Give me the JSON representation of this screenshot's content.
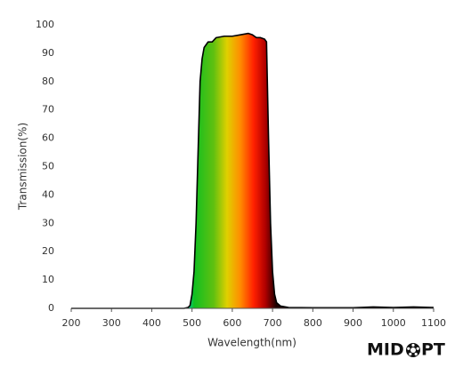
{
  "chart_data": {
    "type": "area",
    "x_label": "Wavelength(nm)",
    "y_label": "Transmission(%)",
    "x": [
      200,
      480,
      490,
      495,
      500,
      505,
      510,
      515,
      520,
      525,
      530,
      540,
      550,
      560,
      580,
      600,
      620,
      640,
      650,
      660,
      670,
      680,
      685,
      690,
      695,
      700,
      705,
      710,
      720,
      740,
      800,
      900,
      950,
      1000,
      1050,
      1100
    ],
    "values": [
      0,
      0,
      0.3,
      1,
      5,
      13,
      30,
      55,
      80,
      88,
      92,
      94,
      94,
      95.5,
      96,
      96,
      96.5,
      97,
      96.5,
      95.5,
      95.5,
      95,
      94,
      60,
      30,
      13,
      5,
      2,
      0.8,
      0.3,
      0.2,
      0.2,
      0.5,
      0.3,
      0.5,
      0.3
    ],
    "color": "#000000",
    "xlim": [
      200,
      1100
    ],
    "ylim": [
      0,
      100
    ],
    "xticks": [
      200,
      300,
      400,
      500,
      600,
      700,
      800,
      900,
      1000,
      1100
    ],
    "yticks": [
      0,
      10,
      20,
      30,
      40,
      50,
      60,
      70,
      80,
      90,
      100
    ],
    "grid": false,
    "logo_left": "MID",
    "logo_right": "PT"
  }
}
